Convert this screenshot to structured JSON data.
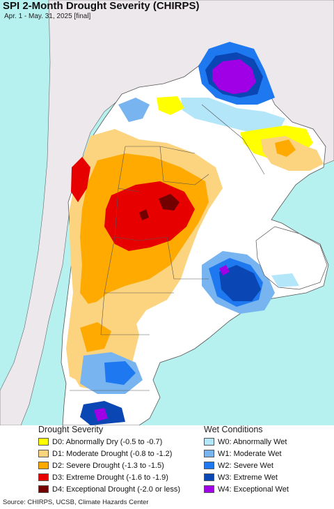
{
  "title": "SPI 2-Month Drought Severity (CHIRPS)",
  "subtitle": "Apr. 1 - May. 31, 2025 [final]",
  "legend": {
    "drought_title": "Drought Severity",
    "drought": [
      {
        "label": "D0: Abnormally Dry (-0.5 to -0.7)",
        "color": "#ffff00"
      },
      {
        "label": "D1: Moderate Drought (-0.8 to -1.2)",
        "color": "#fcd37f"
      },
      {
        "label": "D2: Severe Drought (-1.3 to -1.5)",
        "color": "#ffaa00"
      },
      {
        "label": "D3: Extreme Drought (-1.6 to -1.9)",
        "color": "#e60000"
      },
      {
        "label": "D4: Exceptional Drought (-2.0 or less)",
        "color": "#730000"
      }
    ],
    "wet_title": "Wet Conditions",
    "wet": [
      {
        "label": "W0: Abnormally Wet",
        "color": "#b4e6fa"
      },
      {
        "label": "W1: Moderate Wet",
        "color": "#78b4f0"
      },
      {
        "label": "W2: Severe Wet",
        "color": "#1e78f0"
      },
      {
        "label": "W3: Extreme Wet",
        "color": "#0a46b4"
      },
      {
        "label": "W4: Exceptional Wet",
        "color": "#a000e6"
      }
    ]
  },
  "source": "Source: CHIRPS, UCSB, Climate Hazards Center",
  "colors": {
    "ocean": "#b6f0ef",
    "outside_land": "#ece8ec",
    "no_data": "#ffffff"
  }
}
